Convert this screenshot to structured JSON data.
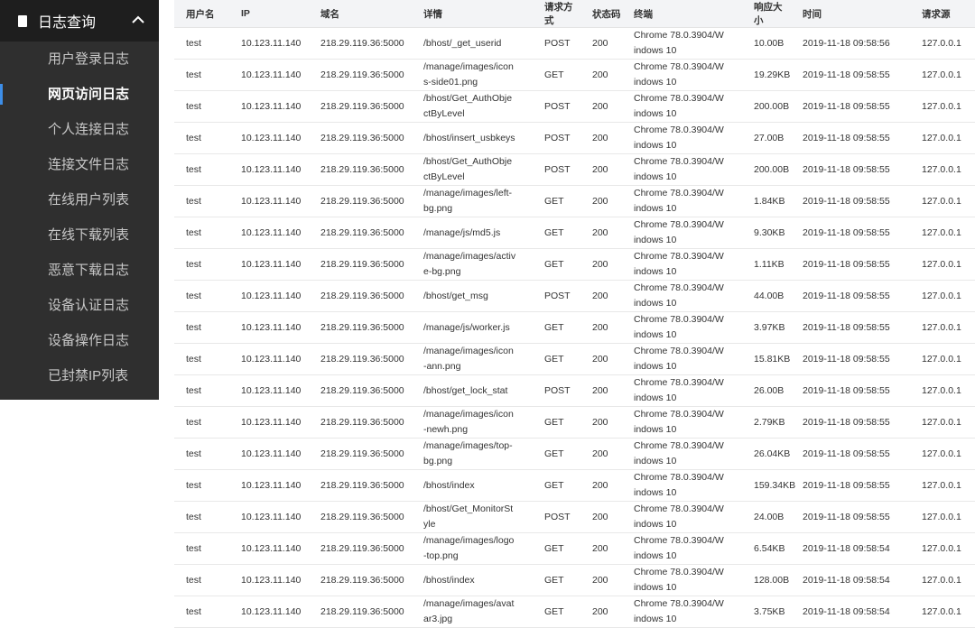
{
  "sidebar": {
    "title": "日志查询",
    "items": [
      "用户登录日志",
      "网页访问日志",
      "个人连接日志",
      "连接文件日志",
      "在线用户列表",
      "在线下载列表",
      "恶意下载日志",
      "设备认证日志",
      "设备操作日志",
      "已封禁IP列表"
    ],
    "active": 1
  },
  "table": {
    "headers": [
      "用户名",
      "IP",
      "域名",
      "详情",
      "请求方式",
      "状态码",
      "终端",
      "响应大小",
      "时间",
      "请求源"
    ],
    "rows": [
      [
        "test",
        "10.123.11.140",
        "218.29.119.36:5000",
        "/bhost/_get_userid",
        "POST",
        "200",
        "Chrome 78.0.3904/Windows 10",
        "10.00B",
        "2019-11-18 09:58:56",
        "127.0.0.1"
      ],
      [
        "test",
        "10.123.11.140",
        "218.29.119.36:5000",
        "/manage/images/icons-side01.png",
        "GET",
        "200",
        "Chrome 78.0.3904/Windows 10",
        "19.29KB",
        "2019-11-18 09:58:55",
        "127.0.0.1"
      ],
      [
        "test",
        "10.123.11.140",
        "218.29.119.36:5000",
        "/bhost/Get_AuthObjectByLevel",
        "POST",
        "200",
        "Chrome 78.0.3904/Windows 10",
        "200.00B",
        "2019-11-18 09:58:55",
        "127.0.0.1"
      ],
      [
        "test",
        "10.123.11.140",
        "218.29.119.36:5000",
        "/bhost/insert_usbkeys",
        "POST",
        "200",
        "Chrome 78.0.3904/Windows 10",
        "27.00B",
        "2019-11-18 09:58:55",
        "127.0.0.1"
      ],
      [
        "test",
        "10.123.11.140",
        "218.29.119.36:5000",
        "/bhost/Get_AuthObjectByLevel",
        "POST",
        "200",
        "Chrome 78.0.3904/Windows 10",
        "200.00B",
        "2019-11-18 09:58:55",
        "127.0.0.1"
      ],
      [
        "test",
        "10.123.11.140",
        "218.29.119.36:5000",
        "/manage/images/left-bg.png",
        "GET",
        "200",
        "Chrome 78.0.3904/Windows 10",
        "1.84KB",
        "2019-11-18 09:58:55",
        "127.0.0.1"
      ],
      [
        "test",
        "10.123.11.140",
        "218.29.119.36:5000",
        "/manage/js/md5.js",
        "GET",
        "200",
        "Chrome 78.0.3904/Windows 10",
        "9.30KB",
        "2019-11-18 09:58:55",
        "127.0.0.1"
      ],
      [
        "test",
        "10.123.11.140",
        "218.29.119.36:5000",
        "/manage/images/active-bg.png",
        "GET",
        "200",
        "Chrome 78.0.3904/Windows 10",
        "1.11KB",
        "2019-11-18 09:58:55",
        "127.0.0.1"
      ],
      [
        "test",
        "10.123.11.140",
        "218.29.119.36:5000",
        "/bhost/get_msg",
        "POST",
        "200",
        "Chrome 78.0.3904/Windows 10",
        "44.00B",
        "2019-11-18 09:58:55",
        "127.0.0.1"
      ],
      [
        "test",
        "10.123.11.140",
        "218.29.119.36:5000",
        "/manage/js/worker.js",
        "GET",
        "200",
        "Chrome 78.0.3904/Windows 10",
        "3.97KB",
        "2019-11-18 09:58:55",
        "127.0.0.1"
      ],
      [
        "test",
        "10.123.11.140",
        "218.29.119.36:5000",
        "/manage/images/icon-ann.png",
        "GET",
        "200",
        "Chrome 78.0.3904/Windows 10",
        "15.81KB",
        "2019-11-18 09:58:55",
        "127.0.0.1"
      ],
      [
        "test",
        "10.123.11.140",
        "218.29.119.36:5000",
        "/bhost/get_lock_stat",
        "POST",
        "200",
        "Chrome 78.0.3904/Windows 10",
        "26.00B",
        "2019-11-18 09:58:55",
        "127.0.0.1"
      ],
      [
        "test",
        "10.123.11.140",
        "218.29.119.36:5000",
        "/manage/images/icon-newh.png",
        "GET",
        "200",
        "Chrome 78.0.3904/Windows 10",
        "2.79KB",
        "2019-11-18 09:58:55",
        "127.0.0.1"
      ],
      [
        "test",
        "10.123.11.140",
        "218.29.119.36:5000",
        "/manage/images/top-bg.png",
        "GET",
        "200",
        "Chrome 78.0.3904/Windows 10",
        "26.04KB",
        "2019-11-18 09:58:55",
        "127.0.0.1"
      ],
      [
        "test",
        "10.123.11.140",
        "218.29.119.36:5000",
        "/bhost/index",
        "GET",
        "200",
        "Chrome 78.0.3904/Windows 10",
        "159.34KB",
        "2019-11-18 09:58:55",
        "127.0.0.1"
      ],
      [
        "test",
        "10.123.11.140",
        "218.29.119.36:5000",
        "/bhost/Get_MonitorStyle",
        "POST",
        "200",
        "Chrome 78.0.3904/Windows 10",
        "24.00B",
        "2019-11-18 09:58:55",
        "127.0.0.1"
      ],
      [
        "test",
        "10.123.11.140",
        "218.29.119.36:5000",
        "/manage/images/logo-top.png",
        "GET",
        "200",
        "Chrome 78.0.3904/Windows 10",
        "6.54KB",
        "2019-11-18 09:58:54",
        "127.0.0.1"
      ],
      [
        "test",
        "10.123.11.140",
        "218.29.119.36:5000",
        "/bhost/index",
        "GET",
        "200",
        "Chrome 78.0.3904/Windows 10",
        "128.00B",
        "2019-11-18 09:58:54",
        "127.0.0.1"
      ],
      [
        "test",
        "10.123.11.140",
        "218.29.119.36:5000",
        "/manage/images/avatar3.jpg",
        "GET",
        "200",
        "Chrome 78.0.3904/Windows 10",
        "3.75KB",
        "2019-11-18 09:58:54",
        "127.0.0.1"
      ]
    ]
  }
}
